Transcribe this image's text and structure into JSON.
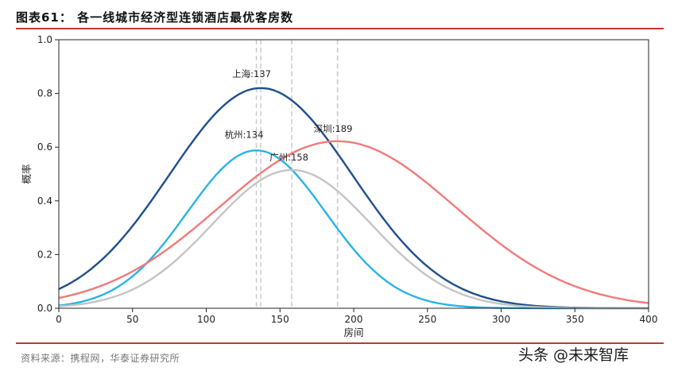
{
  "header": {
    "title": "图表61：  各一线城市经济型连锁酒店最优客房数"
  },
  "footer": {
    "source": "资料来源：携程网，华泰证券研究所",
    "watermark": "头条 @未来智库"
  },
  "chart_data": {
    "type": "line",
    "title": "",
    "xlabel": "房间",
    "ylabel": "概率",
    "xlim": [
      0,
      400
    ],
    "ylim": [
      0,
      1.0
    ],
    "xticks": [
      0,
      50,
      100,
      150,
      200,
      250,
      300,
      350,
      400
    ],
    "yticks": [
      0.0,
      0.2,
      0.4,
      0.6,
      0.8,
      1.0
    ],
    "ytick_labels": [
      "0.0",
      "0.2",
      "0.4",
      "0.6",
      "0.8",
      "1.0"
    ],
    "grid": false,
    "series": [
      {
        "name": "上海",
        "peak_x": 137,
        "peak_y": 0.82,
        "spread": 62,
        "color": "#1f4e8c",
        "label": "上海:137"
      },
      {
        "name": "杭州",
        "peak_x": 134,
        "peak_y": 0.588,
        "spread": 47,
        "color": "#27b3e6",
        "label": "杭州:134"
      },
      {
        "name": "广州",
        "peak_x": 158,
        "peak_y": 0.515,
        "spread": 54,
        "color": "#c4c4c4",
        "label": "广州:158"
      },
      {
        "name": "深圳",
        "peak_x": 189,
        "peak_y": 0.622,
        "spread": 80,
        "color": "#f07a7a",
        "label": "深圳:189"
      }
    ],
    "reference_lines": [
      134,
      137,
      158,
      189
    ],
    "reference_line_color": "#cccccc"
  }
}
